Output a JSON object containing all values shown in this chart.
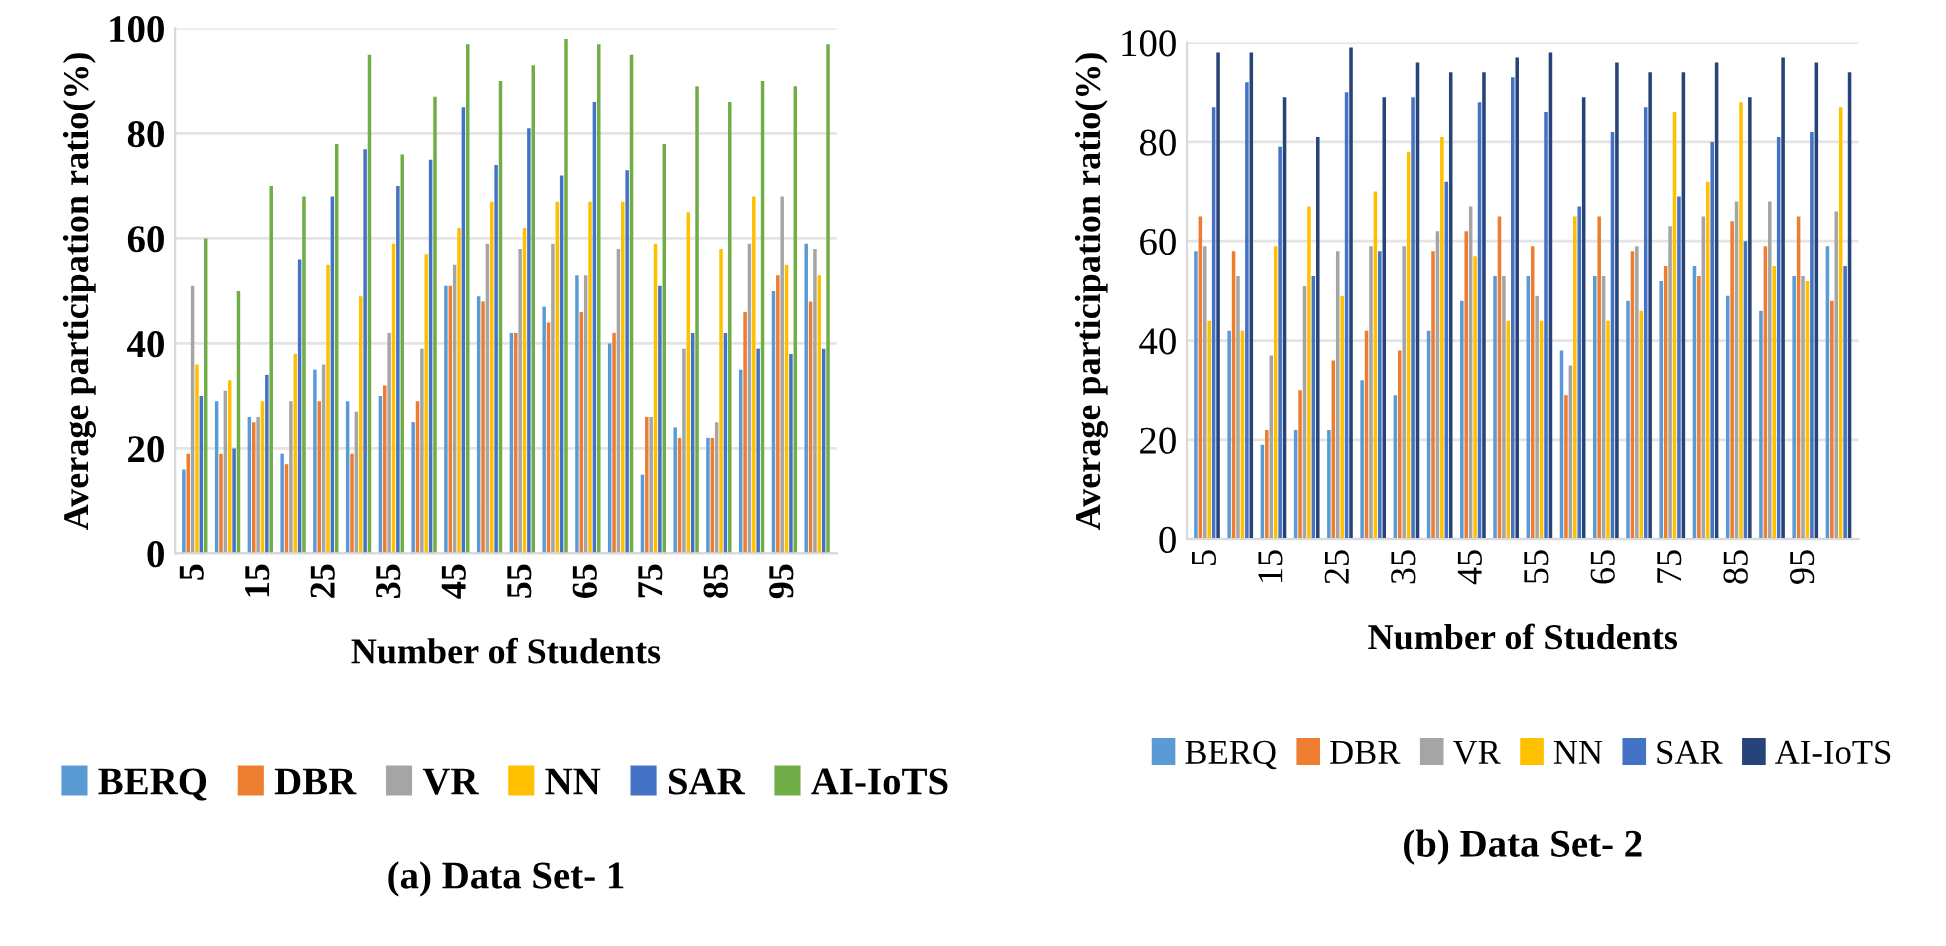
{
  "chart_data": [
    {
      "type": "bar",
      "xlabel": "Number of Students",
      "ylabel": "Average participation ratio(%)",
      "categories": [
        "5",
        null,
        "15",
        null,
        "25",
        null,
        "35",
        null,
        "45",
        null,
        "55",
        null,
        "65",
        null,
        "75",
        null,
        "85",
        null,
        "95",
        null
      ],
      "series": [
        {
          "name": "BERQ",
          "color": "#5b9bd5",
          "values": [
            16,
            29,
            26,
            19,
            35,
            29,
            30,
            25,
            51,
            49,
            42,
            47,
            53,
            40,
            15,
            24,
            22,
            35,
            50,
            59
          ]
        },
        {
          "name": "DBR",
          "color": "#ed7d31",
          "values": [
            19,
            19,
            25,
            17,
            29,
            19,
            32,
            29,
            51,
            48,
            42,
            44,
            46,
            42,
            26,
            22,
            22,
            46,
            53,
            48
          ]
        },
        {
          "name": "VR",
          "color": "#a5a5a5",
          "values": [
            51,
            31,
            26,
            29,
            36,
            27,
            42,
            39,
            55,
            59,
            58,
            59,
            53,
            58,
            26,
            39,
            25,
            59,
            68,
            58
          ]
        },
        {
          "name": "NN",
          "color": "#ffc000",
          "values": [
            36,
            33,
            29,
            38,
            55,
            49,
            59,
            57,
            62,
            67,
            62,
            67,
            67,
            67,
            59,
            65,
            58,
            68,
            55,
            53
          ]
        },
        {
          "name": "SAR",
          "color": "#4472c4",
          "values": [
            30,
            20,
            34,
            56,
            68,
            77,
            70,
            75,
            85,
            74,
            81,
            72,
            86,
            73,
            51,
            42,
            42,
            39,
            38,
            39
          ]
        },
        {
          "name": "AI-IoTS",
          "color": "#70ad47",
          "values": [
            60,
            50,
            70,
            68,
            78,
            95,
            76,
            87,
            97,
            90,
            93,
            98,
            97,
            95,
            78,
            89,
            86,
            90,
            89,
            97
          ]
        }
      ],
      "ylim": [
        0,
        100
      ],
      "yticks": [
        0,
        20,
        40,
        60,
        80,
        100
      ],
      "grid": "y",
      "legend": "bottom",
      "annotations": [
        "(a) Data Set- 1"
      ]
    },
    {
      "type": "bar",
      "xlabel": "Number of Students",
      "ylabel": "Average participation ratio(%)",
      "categories": [
        "5",
        null,
        "15",
        null,
        "25",
        null,
        "35",
        null,
        "45",
        null,
        "55",
        null,
        "65",
        null,
        "75",
        null,
        "85",
        null,
        "95",
        null
      ],
      "series": [
        {
          "name": "BERQ",
          "color": "#5b9bd5",
          "values": [
            58,
            42,
            19,
            22,
            22,
            32,
            29,
            42,
            48,
            53,
            53,
            38,
            53,
            48,
            52,
            55,
            49,
            46,
            53,
            59
          ]
        },
        {
          "name": "DBR",
          "color": "#ed7d31",
          "values": [
            65,
            58,
            22,
            30,
            36,
            42,
            38,
            58,
            62,
            65,
            59,
            29,
            65,
            58,
            55,
            53,
            64,
            59,
            65,
            48
          ]
        },
        {
          "name": "VR",
          "color": "#a5a5a5",
          "values": [
            59,
            53,
            37,
            51,
            58,
            59,
            59,
            62,
            67,
            53,
            49,
            35,
            53,
            59,
            63,
            65,
            68,
            68,
            53,
            66
          ]
        },
        {
          "name": "NN",
          "color": "#ffc000",
          "values": [
            44,
            42,
            59,
            67,
            49,
            70,
            78,
            81,
            57,
            44,
            44,
            65,
            44,
            46,
            86,
            72,
            88,
            55,
            52,
            87
          ]
        },
        {
          "name": "SAR",
          "color": "#4472c4",
          "values": [
            87,
            92,
            79,
            53,
            90,
            58,
            89,
            72,
            88,
            93,
            86,
            67,
            82,
            87,
            69,
            80,
            60,
            81,
            82,
            55
          ]
        },
        {
          "name": "AI-IoTS",
          "color": "#264478",
          "values": [
            98,
            98,
            89,
            81,
            99,
            89,
            96,
            94,
            94,
            97,
            98,
            89,
            96,
            94,
            94,
            96,
            89,
            97,
            96,
            94
          ]
        }
      ],
      "ylim": [
        0,
        100
      ],
      "yticks": [
        0,
        20,
        40,
        60,
        80,
        100
      ],
      "grid": "y",
      "legend": "bottom",
      "annotations": [
        "(b) Data Set- 2"
      ]
    }
  ]
}
